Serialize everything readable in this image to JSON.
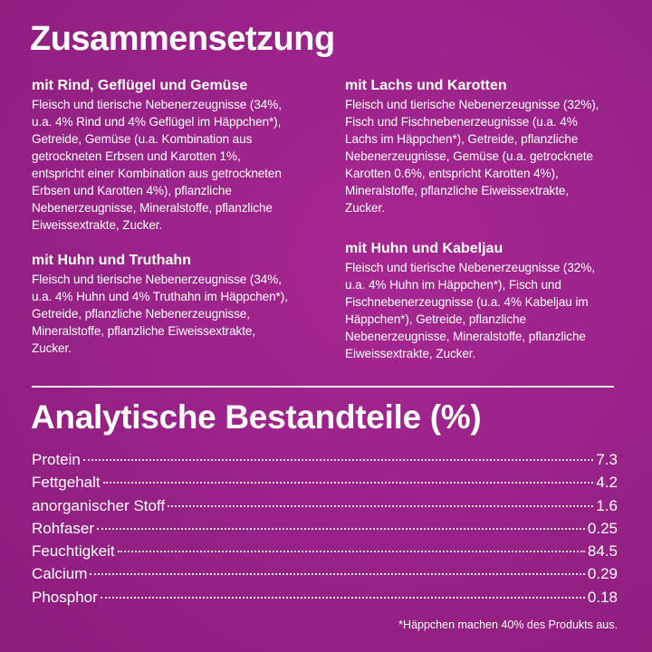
{
  "composition": {
    "title": "Zusammensetzung",
    "variants": [
      {
        "heading": "mit Rind, Geflügel und Gemüse",
        "lines": [
          "Fleisch und tierische Nebenerzeugnisse (34%,",
          "u.a. 4% Rind und 4% Geflügel im Häppchen*),",
          "Getreide, Gemüse (u.a. Kombination aus",
          "getrockneten Erbsen und Karotten 1%,",
          "entspricht einer Kombination aus getrockneten",
          "Erbsen und Karotten 4%), pflanzliche",
          "Nebenerzeugnisse, Mineralstoffe, pflanzliche",
          "Eiweissextrakte, Zucker."
        ]
      },
      {
        "heading": "mit Huhn und Truthahn",
        "lines": [
          "Fleisch und tierische Nebenerzeugnisse (34%,",
          "u.a. 4% Huhn und 4% Truthahn im Häppchen*),",
          "Getreide, pflanzliche Nebenerzeugnisse,",
          "Mineralstoffe, pflanzliche Eiweissextrakte,",
          "Zucker."
        ]
      },
      {
        "heading": "mit Lachs und Karotten",
        "lines": [
          "Fleisch und tierische Nebenerzeugnisse (32%),",
          "Fisch und Fischnebenerzeugnisse (u.a. 4%",
          "Lachs im Häppchen*), Getreide, pflanzliche",
          "Nebenerzeugnisse, Gemüse (u.a. getrocknete",
          "Karotten 0.6%, entspricht Karotten 4%),",
          "Mineralstoffe, pflanzliche Eiweissextrakte,",
          "Zucker."
        ]
      },
      {
        "heading": "mit Huhn und Kabeljau",
        "lines": [
          "Fleisch und tierische Nebenerzeugnisse (32%,",
          "u.a. 4% Huhn im Häppchen*), Fisch und",
          "Fischnebenerzeugnisse (u.a. 4% Kabeljau im",
          "Häppchen*), Getreide, pflanzliche",
          "Nebenerzeugnisse, Mineralstoffe, pflanzliche",
          "Eiweissextrakte, Zucker."
        ]
      }
    ]
  },
  "analysis": {
    "title": "Analytische Bestandteile (%)",
    "rows": [
      {
        "label": "Protein",
        "value": "7.3"
      },
      {
        "label": "Fettgehalt",
        "value": "4.2"
      },
      {
        "label": "anorganischer Stoff",
        "value": "1.6"
      },
      {
        "label": "Rohfaser",
        "value": "0.25"
      },
      {
        "label": "Feuchtigkeit",
        "value": "84.5"
      },
      {
        "label": "Calcium",
        "value": "0.29"
      },
      {
        "label": "Phosphor",
        "value": "0.18"
      }
    ],
    "footnote": "*Häppchen machen 40% des Produkts aus."
  },
  "colors": {
    "background": "#9a2389",
    "text": "#ffffff"
  }
}
